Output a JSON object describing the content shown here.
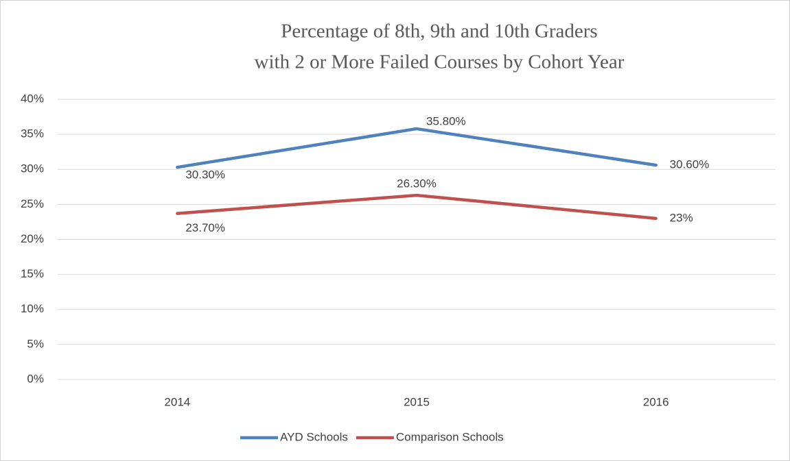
{
  "chart_data": {
    "type": "line",
    "title": [
      "Percentage of 8th, 9th and 10th Graders",
      "with 2 or More Failed Courses by Cohort Year"
    ],
    "categories": [
      "2014",
      "2015",
      "2016"
    ],
    "series": [
      {
        "name": "AYD Schools",
        "color": "#4f81bd",
        "values": [
          30.3,
          35.8,
          30.6
        ],
        "value_labels": [
          "30.30%",
          "35.80%",
          "30.60%"
        ]
      },
      {
        "name": "Comparison Schools",
        "color": "#c0504d",
        "values": [
          23.7,
          26.3,
          23
        ],
        "value_labels": [
          "23.70%",
          "26.30%",
          "23%"
        ]
      }
    ],
    "ylim": [
      0,
      40
    ],
    "yticks": [
      {
        "value": 0,
        "label": "0%"
      },
      {
        "value": 5,
        "label": "5%"
      },
      {
        "value": 10,
        "label": "10%"
      },
      {
        "value": 15,
        "label": "15%"
      },
      {
        "value": 20,
        "label": "20%"
      },
      {
        "value": 25,
        "label": "25%"
      },
      {
        "value": 30,
        "label": "30%"
      },
      {
        "value": 35,
        "label": "35%"
      },
      {
        "value": 40,
        "label": "40%"
      }
    ],
    "grid": true,
    "legend": "bottom"
  }
}
